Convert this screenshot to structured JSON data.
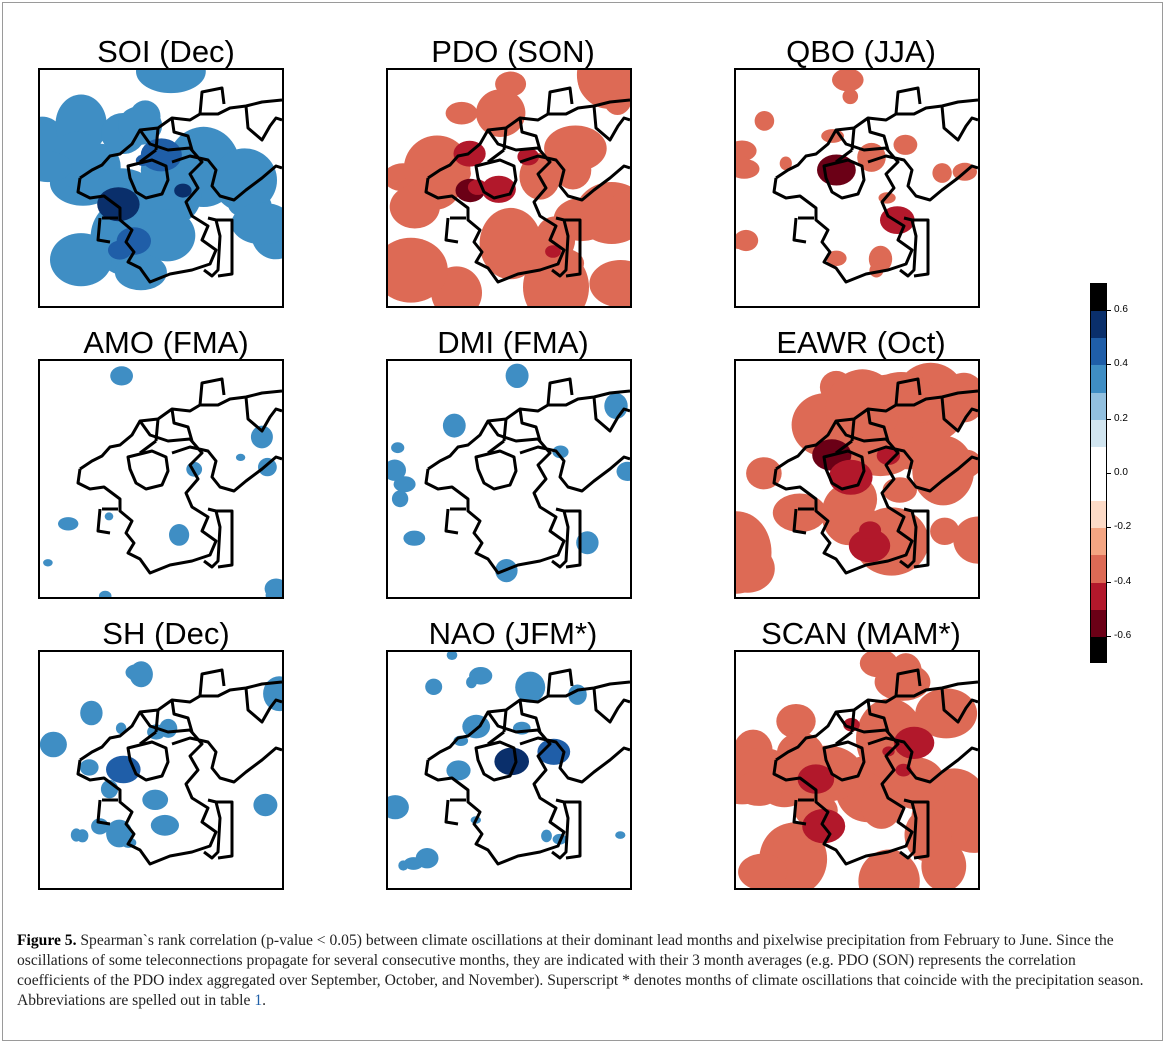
{
  "figure": {
    "panels": [
      {
        "title": "SOI (Dec)",
        "sign": "negative",
        "pattern": "broad"
      },
      {
        "title": "PDO (SON)",
        "sign": "positive",
        "pattern": "broad"
      },
      {
        "title": "QBO (JJA)",
        "sign": "positive",
        "pattern": "patchy"
      },
      {
        "title": "AMO (FMA)",
        "sign": "negative",
        "pattern": "sparse"
      },
      {
        "title": "DMI (FMA)",
        "sign": "negative",
        "pattern": "sparse"
      },
      {
        "title": "EAWR (Oct)",
        "sign": "positive",
        "pattern": "broad"
      },
      {
        "title": "SH (Dec)",
        "sign": "negative",
        "pattern": "patchy"
      },
      {
        "title": "NAO (JFM*)",
        "sign": "negative",
        "pattern": "patchy"
      },
      {
        "title": "SCAN (MAM*)",
        "sign": "positive",
        "pattern": "broad"
      }
    ],
    "colorbar": {
      "labels": [
        "0.6",
        "0.4",
        "0.2",
        "0.0",
        "-0.2",
        "-0.4",
        "-0.6"
      ],
      "min": -0.7,
      "max": 0.7,
      "colors": [
        "#000000",
        "#0a2f6b",
        "#1f5ea8",
        "#3f8ec4",
        "#92c0df",
        "#d1e5f0",
        "#ffffff",
        "#ffffff",
        "#fddbc7",
        "#f4a582",
        "#dd6a55",
        "#b2182b",
        "#6b0016",
        "#000000"
      ]
    },
    "caption": {
      "label": "Figure 5.",
      "text": " Spearman`s rank correlation (p-value < 0.05) between climate oscillations at their dominant lead months and pixelwise precipitation from February to June. Since the oscillations of some teleconnections propagate for several consecutive months, they are indicated with their 3 month averages (e.g. PDO (SON) represents the correlation coefficients of the PDO index aggregated over September, October, and November). Superscript * denotes months of climate oscillations that coincide with the precipitation season. Abbreviations are spelled out in table ",
      "table_ref": "1",
      "end": "."
    }
  }
}
